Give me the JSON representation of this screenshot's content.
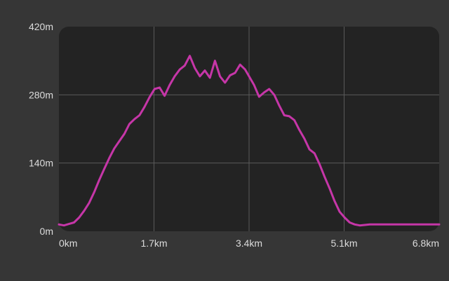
{
  "chart_data": {
    "type": "line",
    "title": "",
    "xlabel": "",
    "ylabel": "",
    "x_unit": "km",
    "y_unit": "m",
    "xlim": [
      0,
      6.8
    ],
    "ylim": [
      0,
      420
    ],
    "x_ticks": [
      {
        "value": 0,
        "label": "0km"
      },
      {
        "value": 1.7,
        "label": "1.7km"
      },
      {
        "value": 3.4,
        "label": "3.4km"
      },
      {
        "value": 5.1,
        "label": "5.1km"
      },
      {
        "value": 6.8,
        "label": "6.8km"
      }
    ],
    "y_ticks": [
      {
        "value": 0,
        "label": "0m"
      },
      {
        "value": 140,
        "label": "140m"
      },
      {
        "value": 280,
        "label": "280m"
      },
      {
        "value": 420,
        "label": "420m"
      }
    ],
    "grid": true,
    "legend": "none",
    "colors": {
      "background": "#363636",
      "plot_background": "#232323",
      "grid": "#5a5a5a",
      "line": "#c636a8",
      "tick_text": "#dcdcdc"
    },
    "series": [
      {
        "x": [
          0.0,
          0.09,
          0.18,
          0.27,
          0.36,
          0.45,
          0.54,
          0.63,
          0.72,
          0.81,
          0.9,
          0.99,
          1.08,
          1.17,
          1.26,
          1.35,
          1.44,
          1.53,
          1.62,
          1.71,
          1.8,
          1.89,
          1.98,
          2.07,
          2.16,
          2.25,
          2.34,
          2.43,
          2.52,
          2.61,
          2.7,
          2.79,
          2.88,
          2.97,
          3.06,
          3.15,
          3.24,
          3.33,
          3.4,
          3.49,
          3.58,
          3.67,
          3.76,
          3.85,
          3.94,
          4.03,
          4.12,
          4.21,
          4.3,
          4.39,
          4.48,
          4.57,
          4.66,
          4.75,
          4.84,
          4.93,
          5.02,
          5.11,
          5.2,
          5.29,
          5.38,
          5.47,
          5.56,
          5.65,
          5.74,
          5.83,
          5.92,
          6.01,
          6.1,
          6.19,
          6.28,
          6.37,
          6.46,
          6.55,
          6.64,
          6.73,
          6.8
        ],
        "y": [
          14,
          12,
          15,
          18,
          28,
          42,
          58,
          80,
          105,
          128,
          150,
          170,
          185,
          200,
          220,
          230,
          238,
          255,
          275,
          292,
          295,
          278,
          300,
          318,
          332,
          340,
          360,
          335,
          318,
          330,
          315,
          350,
          318,
          305,
          320,
          325,
          342,
          332,
          318,
          300,
          276,
          285,
          292,
          280,
          258,
          238,
          236,
          228,
          208,
          190,
          168,
          160,
          138,
          112,
          88,
          62,
          40,
          28,
          18,
          14,
          12,
          13,
          14,
          14,
          14,
          14,
          14,
          14,
          14,
          14,
          14,
          14,
          14,
          14,
          14,
          14,
          14
        ]
      }
    ]
  }
}
